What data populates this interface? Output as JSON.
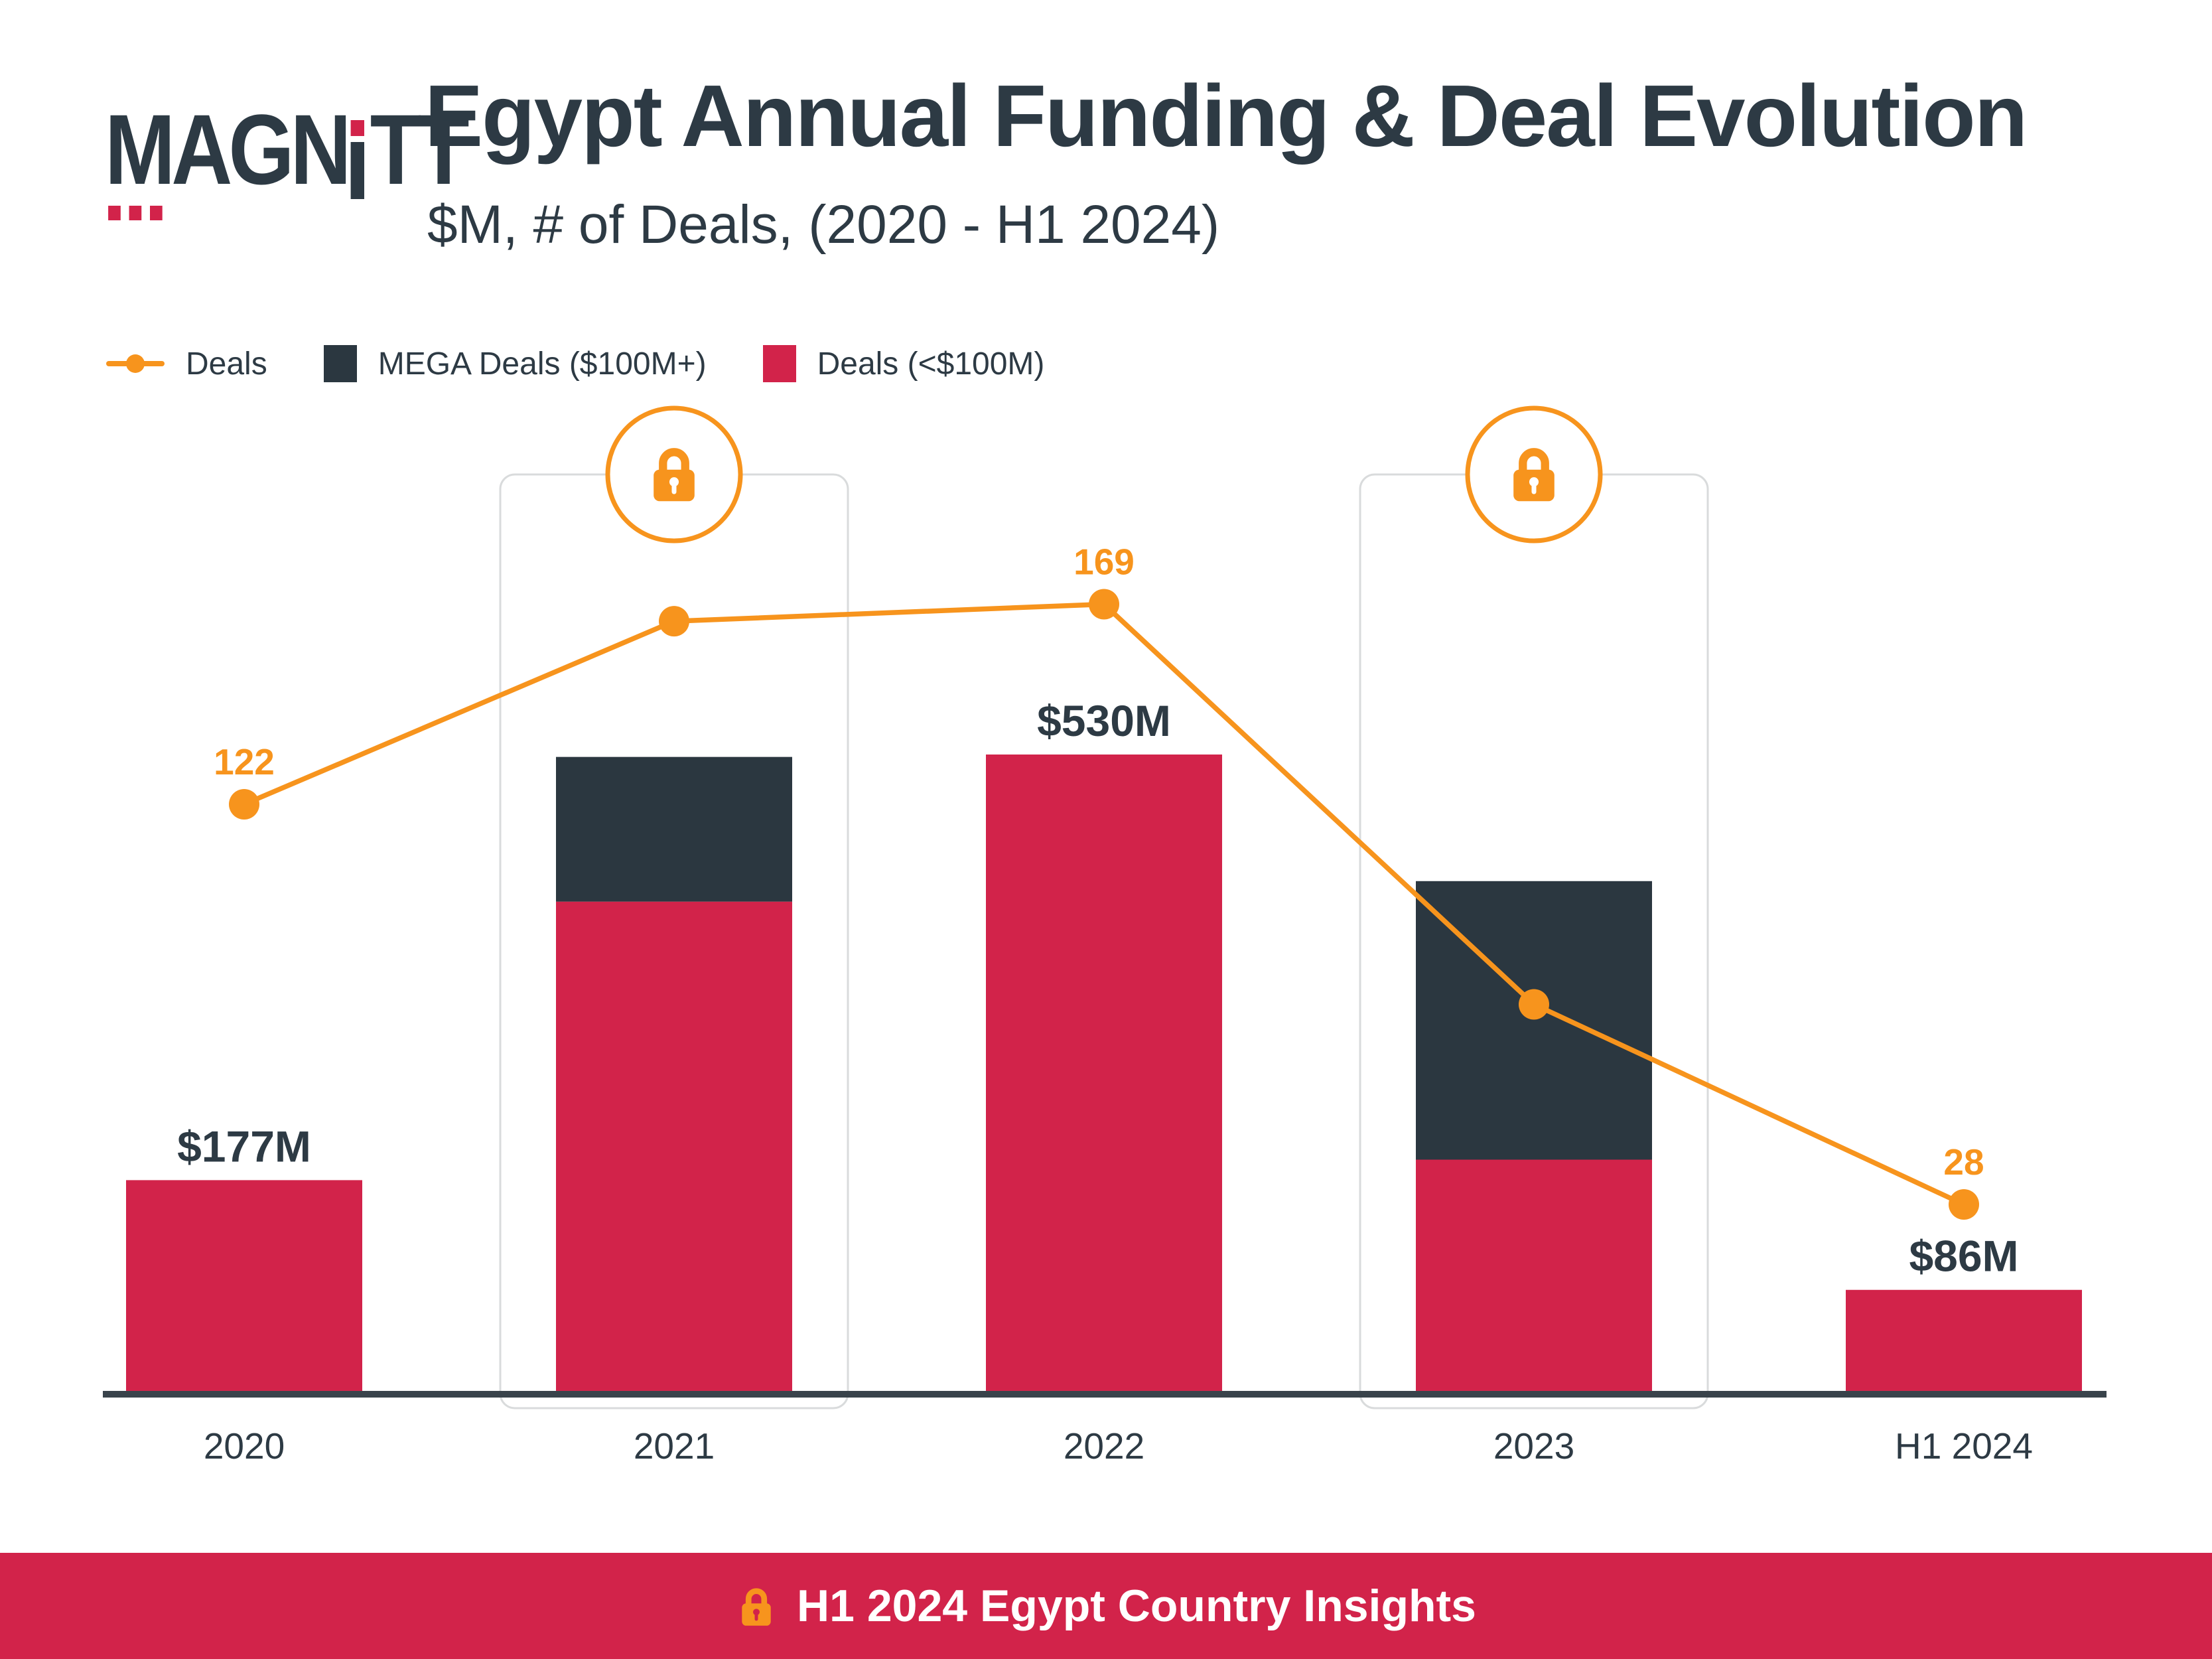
{
  "header": {
    "logo": {
      "part1": "MAGN",
      "part2": "TT",
      "full": "MAGNiTT"
    },
    "title": "Egypt Annual Funding & Deal Evolution",
    "subtitle": "$M, # of Deals, (2020 - H1 2024)"
  },
  "legend": [
    {
      "label": "Deals",
      "color": "#F7941D",
      "marker": "line-dot"
    },
    {
      "label": "MEGA Deals ($100M+)",
      "color": "#2B3740",
      "marker": "square"
    },
    {
      "label": "Deals (<$100M)",
      "color": "#D2234A",
      "marker": "square"
    }
  ],
  "chart_data": {
    "type": "bar",
    "subtype": "stacked-bars-with-line-overlay",
    "title": "Egypt Annual Funding & Deal Evolution",
    "categories": [
      "2020",
      "2021",
      "2022",
      "2023",
      "H1 2024"
    ],
    "series": [
      {
        "name": "Deals",
        "type": "line",
        "axis": "deals",
        "color": "#F7941D",
        "values": [
          122,
          165,
          169,
          75,
          28
        ],
        "point_labels": [
          "122",
          null,
          "169",
          null,
          "28"
        ],
        "values_estimated": [
          false,
          true,
          false,
          true,
          false
        ]
      },
      {
        "name": "MEGA Deals ($100M+)",
        "type": "bar",
        "axis": "funding_$M",
        "color": "#2B3740",
        "values": [
          0,
          120,
          0,
          231,
          0
        ],
        "values_estimated": [
          false,
          true,
          false,
          true,
          false
        ]
      },
      {
        "name": "Deals (<$100M)",
        "type": "bar",
        "axis": "funding_$M",
        "color": "#D2234A",
        "values": [
          177,
          408,
          530,
          194,
          86
        ],
        "values_estimated": [
          false,
          true,
          false,
          true,
          false
        ]
      }
    ],
    "bar_total_labels": [
      "$177M",
      null,
      "$530M",
      null,
      "$86M"
    ],
    "locked_categories": [
      "2021",
      "2023"
    ],
    "value_axis_visible": false,
    "grid": false,
    "legend_position": "top-left"
  },
  "footer": {
    "label": "H1 2024 Egypt Country Insights",
    "background": "#D2234A"
  },
  "colors": {
    "accent_orange": "#F7941D",
    "brand_red": "#D2234A",
    "dark": "#2B3740",
    "text": "#2D3A44",
    "panel_border": "#D9DBDC",
    "axis": "#39434B"
  }
}
